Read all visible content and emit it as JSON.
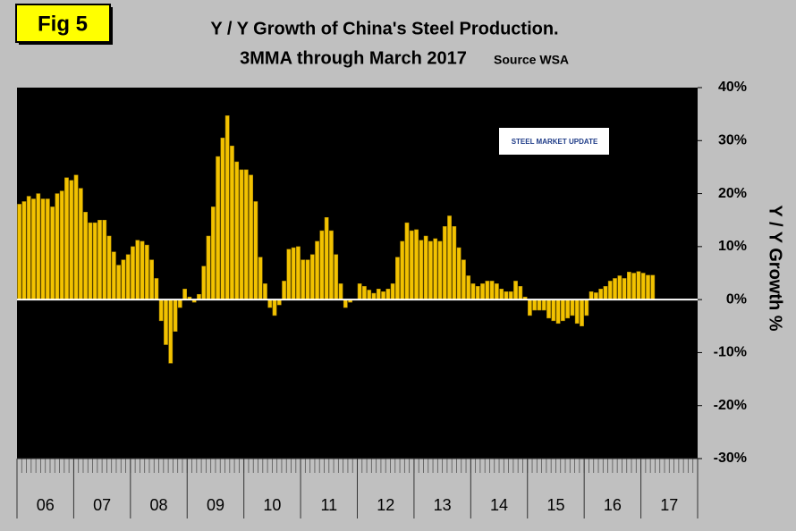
{
  "figure_label": "Fig 5",
  "logo": "STEEL MARKET UPDATE",
  "chart_data": {
    "type": "bar",
    "title": "Y / Y Growth of China's Steel Production.",
    "subtitle": "3MMA through March 2017",
    "source": "Source WSA",
    "y_label": "Y / Y Growth %",
    "x_labels": [
      "06",
      "07",
      "08",
      "09",
      "10",
      "11",
      "12",
      "13",
      "14",
      "15",
      "16",
      "17"
    ],
    "periods_per_label": 12,
    "color": "#f2c200",
    "ylim": [
      -30,
      40
    ],
    "yticks": [
      {
        "value": -30,
        "label": "-30%"
      },
      {
        "value": -20,
        "label": "-20%"
      },
      {
        "value": -10,
        "label": "-10%"
      },
      {
        "value": 0,
        "label": "0%"
      },
      {
        "value": 10,
        "label": "10%"
      },
      {
        "value": 20,
        "label": "20%"
      },
      {
        "value": 30,
        "label": "30%"
      },
      {
        "value": 40,
        "label": "40%"
      }
    ],
    "values": [
      18,
      18.5,
      19.5,
      19,
      20,
      19,
      19,
      17.5,
      20,
      20.5,
      23,
      22.5,
      23.5,
      21,
      16.5,
      14.5,
      14.5,
      15,
      15,
      12,
      9,
      6.5,
      7.5,
      8.5,
      10,
      11.2,
      11,
      10.3,
      7.5,
      4,
      -4,
      -8.5,
      -12,
      -6,
      -1.5,
      2,
      0.5,
      -0.5,
      1,
      6.3,
      12,
      17.5,
      27,
      30.5,
      34.7,
      29,
      26,
      24.5,
      24.5,
      23.5,
      18.5,
      8,
      3,
      -1.5,
      -3,
      -1,
      3.5,
      9.5,
      9.8,
      10,
      7.5,
      7.5,
      8.5,
      11,
      13,
      15.5,
      13,
      8.5,
      3,
      -1.5,
      -0.5,
      0,
      3,
      2.5,
      1.8,
      1.2,
      2,
      1.5,
      2,
      3,
      8,
      11,
      14.5,
      13,
      13.2,
      11.2,
      12,
      11,
      11.5,
      11,
      13.8,
      15.8,
      13.8,
      9.8,
      7.5,
      4.5,
      3,
      2.5,
      3,
      3.5,
      3.5,
      3,
      2,
      1.5,
      1.5,
      3.5,
      2.5,
      0.5,
      -3,
      -2,
      -2,
      -2,
      -3.5,
      -4,
      -4.5,
      -4,
      -3.5,
      -3,
      -4.5,
      -5,
      -3,
      1.5,
      1.3,
      2,
      2.5,
      3.5,
      4,
      4.5,
      4,
      5.2,
      5,
      5.3,
      5,
      4.6,
      4.6
    ]
  }
}
